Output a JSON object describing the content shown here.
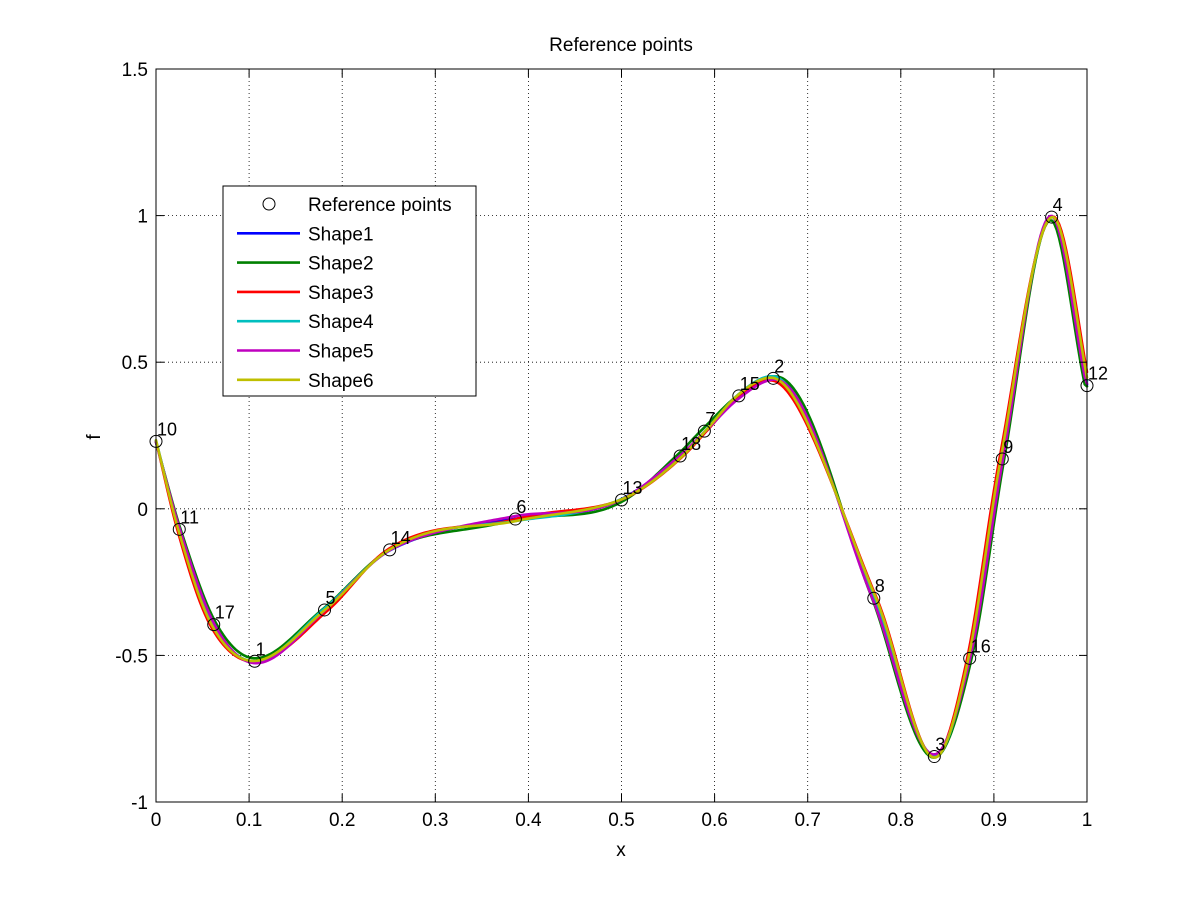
{
  "chart_data": {
    "type": "line",
    "title": "Reference points",
    "xlabel": "x",
    "ylabel": "f",
    "xlim": [
      0,
      1
    ],
    "ylim": [
      -1,
      1.5
    ],
    "xticks": [
      0,
      0.1,
      0.2,
      0.3,
      0.4,
      0.5,
      0.6,
      0.7,
      0.8,
      0.9,
      1
    ],
    "xtick_labels": [
      "0",
      "0.1",
      "0.2",
      "0.3",
      "0.4",
      "0.5",
      "0.6",
      "0.7",
      "0.8",
      "0.9",
      "1"
    ],
    "yticks": [
      -1,
      -0.5,
      0,
      0.5,
      1,
      1.5
    ],
    "ytick_labels": [
      "-1",
      "-0.5",
      "0",
      "0.5",
      "1",
      "1.5"
    ],
    "grid": true,
    "legend_position": "upper-left",
    "reference_points": {
      "name": "Reference points",
      "points": [
        {
          "label": "1",
          "x": 0.106,
          "y": -0.52
        },
        {
          "label": "2",
          "x": 0.663,
          "y": 0.445
        },
        {
          "label": "3",
          "x": 0.836,
          "y": -0.845
        },
        {
          "label": "4",
          "x": 0.962,
          "y": 0.995
        },
        {
          "label": "5",
          "x": 0.181,
          "y": -0.345
        },
        {
          "label": "6",
          "x": 0.386,
          "y": -0.035
        },
        {
          "label": "7",
          "x": 0.589,
          "y": 0.265
        },
        {
          "label": "8",
          "x": 0.771,
          "y": -0.305
        },
        {
          "label": "9",
          "x": 0.909,
          "y": 0.17
        },
        {
          "label": "10",
          "x": 0.0,
          "y": 0.23
        },
        {
          "label": "11",
          "x": 0.025,
          "y": -0.07
        },
        {
          "label": "12",
          "x": 1.0,
          "y": 0.42
        },
        {
          "label": "13",
          "x": 0.5,
          "y": 0.03
        },
        {
          "label": "14",
          "x": 0.251,
          "y": -0.14
        },
        {
          "label": "15",
          "x": 0.626,
          "y": 0.385
        },
        {
          "label": "16",
          "x": 0.874,
          "y": -0.51
        },
        {
          "label": "17",
          "x": 0.062,
          "y": -0.395
        },
        {
          "label": "18",
          "x": 0.563,
          "y": 0.18
        }
      ]
    },
    "series": [
      {
        "name": "Shape1",
        "color": "#0000ff",
        "dx": 0.0,
        "dy": 0.0
      },
      {
        "name": "Shape2",
        "color": "#008000",
        "dx": -0.002,
        "dy": 0.008
      },
      {
        "name": "Shape3",
        "color": "#ff0000",
        "dx": 0.003,
        "dy": -0.004
      },
      {
        "name": "Shape4",
        "color": "#00bfbf",
        "dx": 0.001,
        "dy": 0.004
      },
      {
        "name": "Shape5",
        "color": "#bf00bf",
        "dx": -0.001,
        "dy": -0.006
      },
      {
        "name": "Shape6",
        "color": "#bfbf00",
        "dx": 0.002,
        "dy": 0.002
      }
    ]
  }
}
